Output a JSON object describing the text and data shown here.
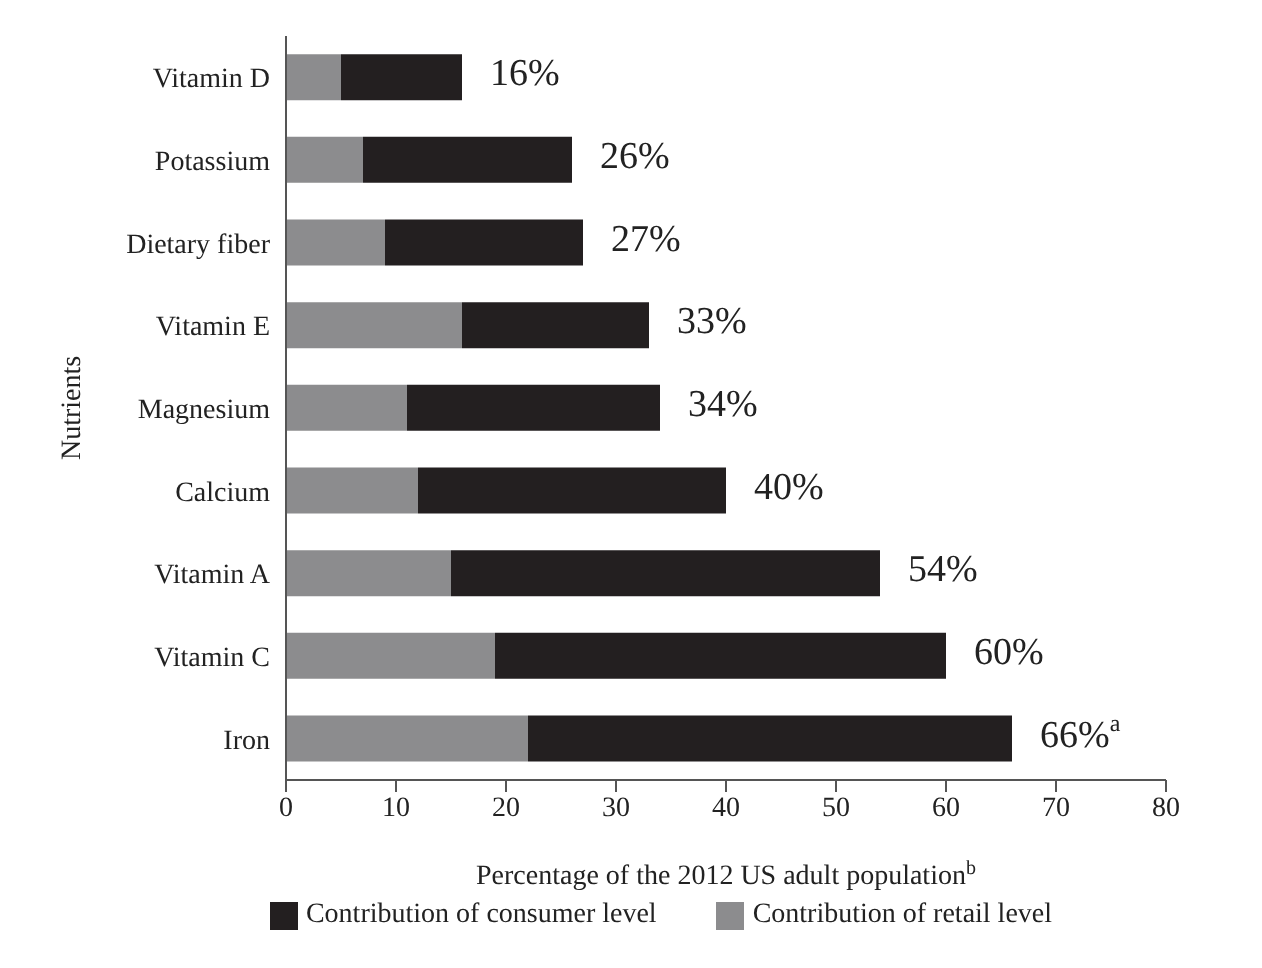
{
  "chart_data": {
    "type": "bar",
    "orientation": "horizontal",
    "stacked": true,
    "categories": [
      "Vitamin D",
      "Potassium",
      "Dietary fiber",
      "Vitamin E",
      "Magnesium",
      "Calcium",
      "Vitamin A",
      "Vitamin C",
      "Iron"
    ],
    "series": [
      {
        "name": "Contribution of retail level",
        "color": "#8c8c8e",
        "values": [
          5,
          7,
          9,
          16,
          11,
          12,
          15,
          19,
          22
        ]
      },
      {
        "name": "Contribution of consumer level",
        "color": "#231f20",
        "values": [
          11,
          19,
          18,
          17,
          23,
          28,
          39,
          41,
          44
        ]
      }
    ],
    "totals": [
      "16%",
      "26%",
      "27%",
      "33%",
      "34%",
      "40%",
      "54%",
      "60%",
      "66%$^{a}$"
    ],
    "xlabel": "Percentage of the 2012 US adult population$^{b}$",
    "ylabel": "Nutrients",
    "xlim": [
      0,
      80
    ],
    "xticks": [
      0,
      10,
      20,
      30,
      40,
      50,
      60,
      70,
      80
    ],
    "grid": false,
    "legend": "bottom"
  }
}
